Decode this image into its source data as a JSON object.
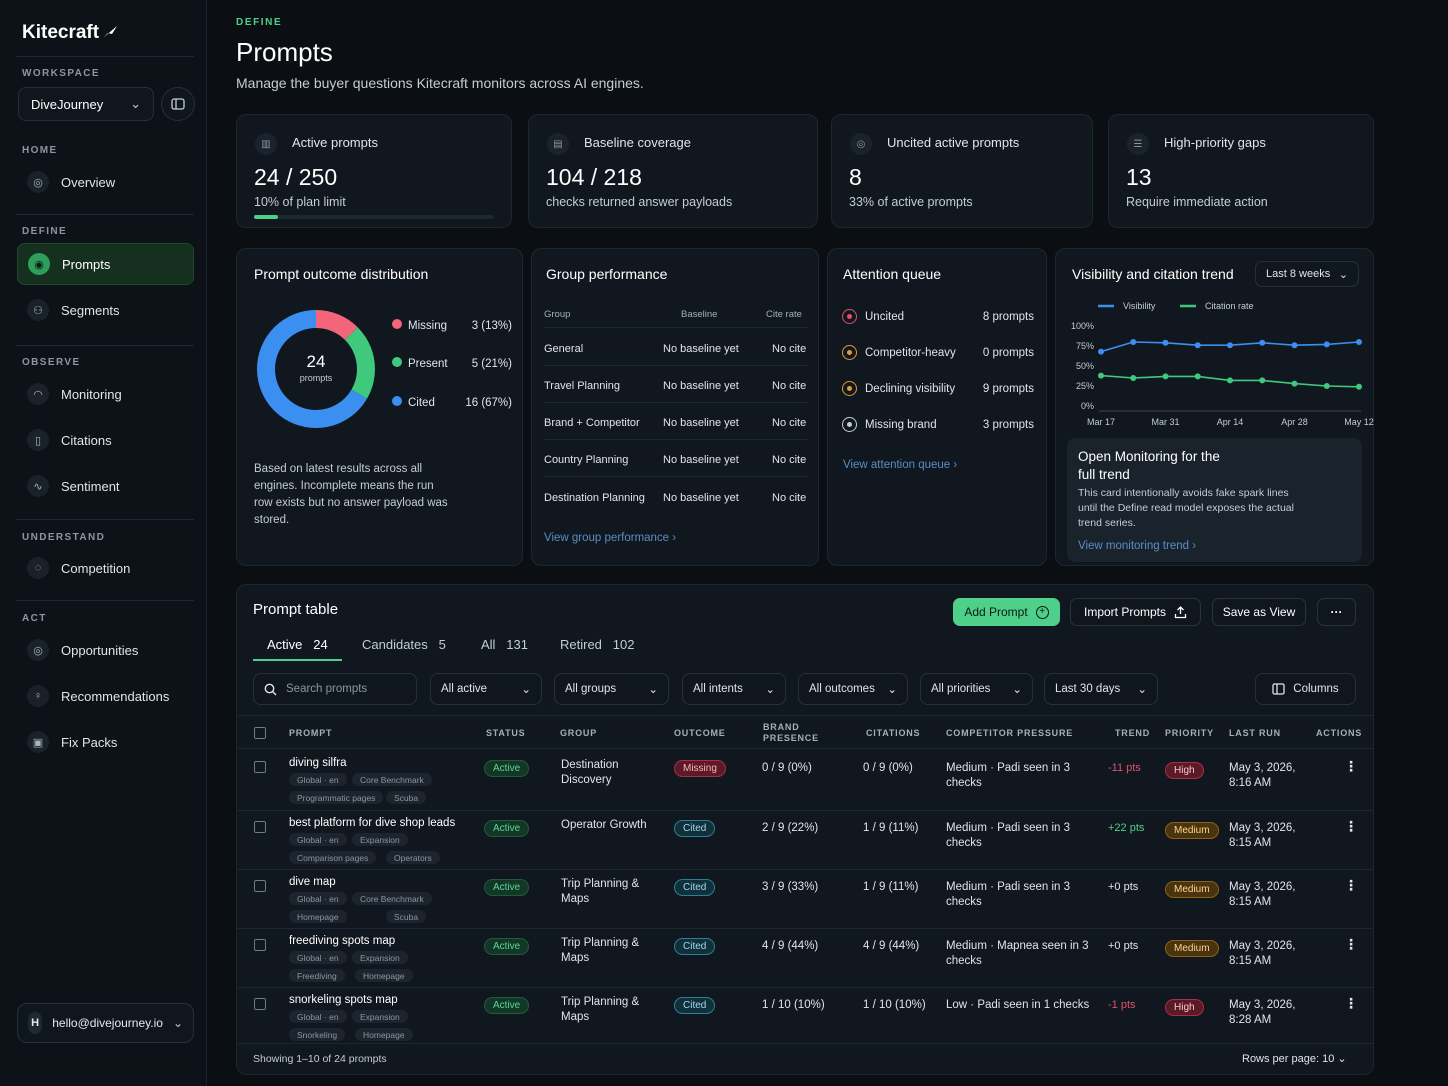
{
  "app": {
    "name": "Kitecraft"
  },
  "sidebar": {
    "workspace_label": "WORKSPACE",
    "workspace_value": "DiveJourney",
    "sections": [
      {
        "label": "HOME",
        "items": [
          {
            "label": "Overview",
            "icon": "overview-icon"
          }
        ]
      },
      {
        "label": "DEFINE",
        "items": [
          {
            "label": "Prompts",
            "icon": "prompts-icon"
          },
          {
            "label": "Segments",
            "icon": "segments-icon"
          }
        ]
      },
      {
        "label": "OBSERVE",
        "items": [
          {
            "label": "Monitoring",
            "icon": "monitoring-icon"
          },
          {
            "label": "Citations",
            "icon": "citations-icon"
          },
          {
            "label": "Sentiment",
            "icon": "sentiment-icon"
          }
        ]
      },
      {
        "label": "UNDERSTAND",
        "items": [
          {
            "label": "Competition",
            "icon": "competition-icon"
          }
        ]
      },
      {
        "label": "ACT",
        "items": [
          {
            "label": "Opportunities",
            "icon": "opportunities-icon"
          },
          {
            "label": "Recommendations",
            "icon": "recommendations-icon"
          },
          {
            "label": "Fix Packs",
            "icon": "fix-packs-icon"
          }
        ]
      }
    ],
    "user_initial": "H",
    "user_email": "hello@divejourney.io"
  },
  "header": {
    "eyebrow": "DEFINE",
    "title": "Prompts",
    "subtitle": "Manage the buyer questions Kitecraft monitors across AI engines."
  },
  "kpis": [
    {
      "label": "Active prompts",
      "value": "24 / 250",
      "sub": "10% of plan limit",
      "progress": 0.1
    },
    {
      "label": "Baseline coverage",
      "value": "104 / 218",
      "sub": "checks returned answer payloads"
    },
    {
      "label": "Uncited active prompts",
      "value": "8",
      "sub": "33% of active prompts"
    },
    {
      "label": "High-priority gaps",
      "value": "13",
      "sub": "Require immediate action"
    }
  ],
  "distribution": {
    "title": "Prompt outcome distribution",
    "center_value": "24",
    "center_label": "prompts",
    "segments": [
      {
        "label": "Missing",
        "value": "3 (13%)",
        "count": 3,
        "color": "#f2657a"
      },
      {
        "label": "Present",
        "value": "5 (21%)",
        "count": 5,
        "color": "#3ec97c"
      },
      {
        "label": "Cited",
        "value": "16 (67%)",
        "count": 16,
        "color": "#3b8ff0"
      }
    ],
    "note": "Based on latest results across all engines. Incomplete means the run row exists but no answer payload was stored."
  },
  "group_performance": {
    "title": "Group performance",
    "headers": [
      "Group",
      "Baseline",
      "Cite rate"
    ],
    "rows": [
      {
        "group": "General",
        "baseline": "No baseline yet",
        "cite": "No cite"
      },
      {
        "group": "Travel Planning",
        "baseline": "No baseline yet",
        "cite": "No cite"
      },
      {
        "group": "Brand + Competitor",
        "baseline": "No baseline yet",
        "cite": "No cite"
      },
      {
        "group": "Country Planning",
        "baseline": "No baseline yet",
        "cite": "No cite"
      },
      {
        "group": "Destination Planning",
        "baseline": "No baseline yet",
        "cite": "No cite"
      }
    ],
    "link": "View group performance"
  },
  "attention_queue": {
    "title": "Attention queue",
    "rows": [
      {
        "label": "Uncited",
        "count": "8 prompts",
        "color": "#e0506a"
      },
      {
        "label": "Competitor-heavy",
        "count": "0 prompts",
        "color": "#e09a3a"
      },
      {
        "label": "Declining visibility",
        "count": "9 prompts",
        "color": "#e09a3a"
      },
      {
        "label": "Missing brand",
        "count": "3 prompts",
        "color": "#c4ccd5"
      }
    ],
    "link": "View attention queue"
  },
  "trend": {
    "title": "Visibility and citation trend",
    "range": "Last 8 weeks",
    "promo_title": "Open Monitoring for the full trend",
    "promo_text": "This card intentionally avoids fake spark lines until the Define read model exposes the actual trend series.",
    "link": "View monitoring trend"
  },
  "chart_data": {
    "type": "line",
    "x": [
      "Mar 17",
      "",
      "Mar 31",
      "",
      "Apr 14",
      "",
      "Apr 28",
      "",
      "May 12"
    ],
    "xticks": [
      "Mar 17",
      "Mar 31",
      "Apr 14",
      "Apr 28",
      "May 12"
    ],
    "yticks": [
      "100%",
      "75%",
      "50%",
      "25%",
      "0%"
    ],
    "ylim": [
      0,
      100
    ],
    "series": [
      {
        "name": "Visibility",
        "color": "#3b8ff0",
        "values": [
          68,
          80,
          79,
          76,
          76,
          79,
          76,
          77,
          80
        ]
      },
      {
        "name": "Citation rate",
        "color": "#3ec97c",
        "values": [
          38,
          35,
          37,
          37,
          32,
          32,
          28,
          25,
          24
        ]
      }
    ]
  },
  "table": {
    "title": "Prompt table",
    "buttons": {
      "add": "Add Prompt",
      "import": "Import Prompts",
      "save": "Save as View",
      "more": "···"
    },
    "tabs": [
      {
        "label": "Active",
        "count": "24"
      },
      {
        "label": "Candidates",
        "count": "5"
      },
      {
        "label": "All",
        "count": "131"
      },
      {
        "label": "Retired",
        "count": "102"
      }
    ],
    "search_placeholder": "Search prompts",
    "filters": [
      "All active",
      "All groups",
      "All intents",
      "All outcomes",
      "All priorities",
      "Last 30 days"
    ],
    "columns_button": "Columns",
    "headers": [
      "PROMPT",
      "STATUS",
      "GROUP",
      "OUTCOME",
      "BRAND PRESENCE",
      "CITATIONS",
      "COMPETITOR PRESSURE",
      "TREND",
      "PRIORITY",
      "LAST RUN",
      "ACTIONS"
    ],
    "rows": [
      {
        "prompt": "diving silfra",
        "tags": [
          "Global · en",
          "Core Benchmark",
          "Programmatic pages",
          "Scuba"
        ],
        "status": "Active",
        "group": "Destination Discovery",
        "outcome": "Missing",
        "brand": "0 / 9 (0%)",
        "citations": "0 / 9 (0%)",
        "pressure": "Medium · Padi seen in 3 checks",
        "trend": "-11 pts",
        "priority": "High",
        "last_run": "May 3, 2026, 8:16 AM"
      },
      {
        "prompt": "best platform for dive shop leads",
        "tags": [
          "Global · en",
          "Expansion",
          "Comparison pages",
          "Operators"
        ],
        "status": "Active",
        "group": "Operator Growth",
        "outcome": "Cited",
        "brand": "2 / 9 (22%)",
        "citations": "1 / 9 (11%)",
        "pressure": "Medium · Padi seen in 3 checks",
        "trend": "+22 pts",
        "priority": "Medium",
        "last_run": "May 3, 2026, 8:15 AM"
      },
      {
        "prompt": "dive map",
        "tags": [
          "Global · en",
          "Core Benchmark",
          "Homepage",
          "Scuba"
        ],
        "status": "Active",
        "group": "Trip Planning & Maps",
        "outcome": "Cited",
        "brand": "3 / 9 (33%)",
        "citations": "1 / 9 (11%)",
        "pressure": "Medium · Padi seen in 3 checks",
        "trend": "+0 pts",
        "priority": "Medium",
        "last_run": "May 3, 2026, 8:15 AM"
      },
      {
        "prompt": "freediving spots map",
        "tags": [
          "Global · en",
          "Expansion",
          "Freediving",
          "Homepage"
        ],
        "status": "Active",
        "group": "Trip Planning & Maps",
        "outcome": "Cited",
        "brand": "4 / 9 (44%)",
        "citations": "4 / 9 (44%)",
        "pressure": "Medium · Mapnea seen in 3 checks",
        "trend": "+0 pts",
        "priority": "Medium",
        "last_run": "May 3, 2026, 8:15 AM"
      },
      {
        "prompt": "snorkeling spots map",
        "tags": [
          "Global · en",
          "Expansion",
          "Snorkeling",
          "Homepage"
        ],
        "status": "Active",
        "group": "Trip Planning & Maps",
        "outcome": "Cited",
        "brand": "1 / 10 (10%)",
        "citations": "1 / 10 (10%)",
        "pressure": "Low · Padi seen in 1 checks",
        "trend": "-1 pts",
        "priority": "High",
        "last_run": "May 3, 2026, 8:28 AM"
      }
    ],
    "footer_showing": "Showing 1–10 of 24 prompts",
    "footer_rows": "Rows per page: 10"
  }
}
